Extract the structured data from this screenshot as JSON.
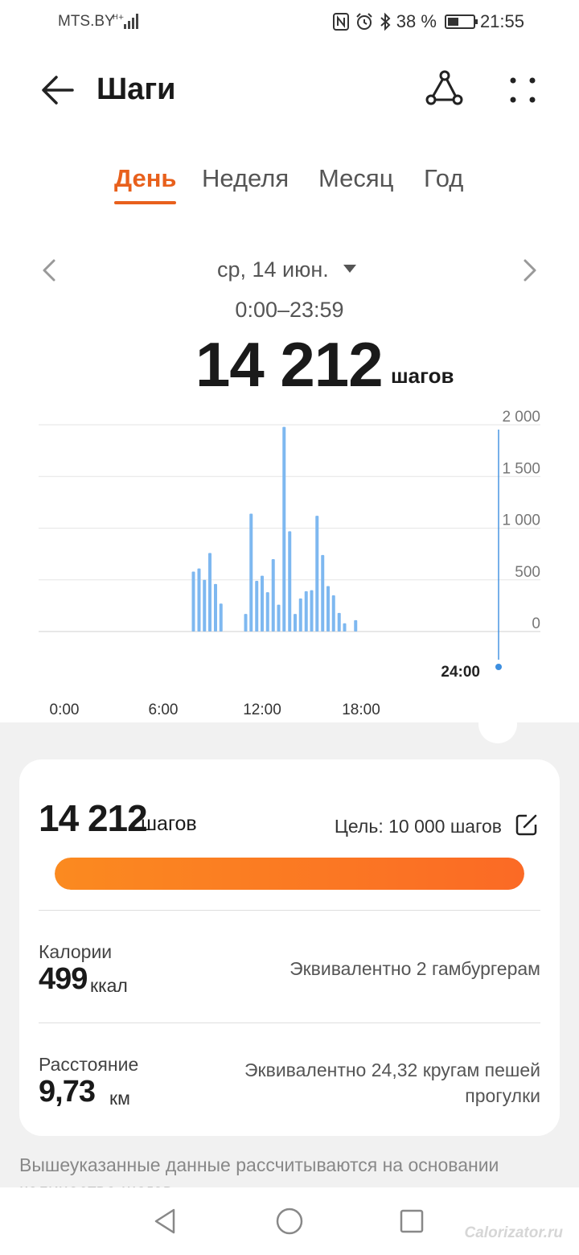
{
  "status_bar": {
    "carrier": "MTS.BY",
    "battery": "38 %",
    "battery_fraction": 0.38,
    "time": "21:55"
  },
  "app_bar": {
    "title": "Шаги",
    "icons": [
      "back-arrow-icon",
      "share-icon",
      "more-icon"
    ]
  },
  "tabs": [
    {
      "label": "День",
      "active": true
    },
    {
      "label": "Неделя",
      "active": false
    },
    {
      "label": "Месяц",
      "active": false
    },
    {
      "label": "Год",
      "active": false
    }
  ],
  "summary": {
    "date": "ср, 14 июн.",
    "time_range": "0:00–23:59",
    "steps": "14 212",
    "unit": "шагов"
  },
  "chart_data": {
    "type": "bar",
    "ylim": [
      0,
      2000
    ],
    "y_ticks": [
      "2 000",
      "1 500",
      "1 000",
      "500",
      "0"
    ],
    "x_ticks": [
      "0:00",
      "6:00",
      "12:00",
      "18:00"
    ],
    "x_tick_hours": [
      0,
      6,
      12,
      18
    ],
    "cursor_label": "24:00",
    "bar_color": "#7eb8f0",
    "bars": [
      {
        "hour": 7.83,
        "value": 580
      },
      {
        "hour": 8.17,
        "value": 610
      },
      {
        "hour": 8.5,
        "value": 500
      },
      {
        "hour": 8.83,
        "value": 760
      },
      {
        "hour": 9.17,
        "value": 460
      },
      {
        "hour": 9.5,
        "value": 270
      },
      {
        "hour": 11.0,
        "value": 170
      },
      {
        "hour": 11.33,
        "value": 1140
      },
      {
        "hour": 11.67,
        "value": 490
      },
      {
        "hour": 12.0,
        "value": 540
      },
      {
        "hour": 12.33,
        "value": 380
      },
      {
        "hour": 12.67,
        "value": 700
      },
      {
        "hour": 13.0,
        "value": 260
      },
      {
        "hour": 13.33,
        "value": 1980
      },
      {
        "hour": 13.67,
        "value": 970
      },
      {
        "hour": 14.0,
        "value": 170
      },
      {
        "hour": 14.33,
        "value": 320
      },
      {
        "hour": 14.67,
        "value": 390
      },
      {
        "hour": 15.0,
        "value": 400
      },
      {
        "hour": 15.33,
        "value": 1120
      },
      {
        "hour": 15.67,
        "value": 740
      },
      {
        "hour": 16.0,
        "value": 440
      },
      {
        "hour": 16.33,
        "value": 350
      },
      {
        "hour": 16.67,
        "value": 180
      },
      {
        "hour": 17.0,
        "value": 80
      },
      {
        "hour": 17.67,
        "value": 110
      }
    ]
  },
  "card": {
    "steps": "14 212",
    "unit": "шагов",
    "goal": "Цель: 10 000 шагов",
    "progress_fraction": 1.0,
    "calories": {
      "label": "Калории",
      "value": "499",
      "unit": "ккал",
      "equivalent": "Эквивалентно 2 гамбургерам"
    },
    "distance": {
      "label": "Расстояние",
      "value": "9,73",
      "unit": "км",
      "equivalent_line1": "Эквивалентно 24,32 кругам пешей",
      "equivalent_line2": "прогулки"
    }
  },
  "footnote": "Вышеуказанные данные рассчитываются на основании количества шагов",
  "watermark": "Calorizator.ru",
  "colors": {
    "accent": "#e8601c",
    "progress_start": "#fb8a20",
    "progress_end": "#fb6a25",
    "bar": "#7eb8f0",
    "cursor": "#3d8fe0"
  }
}
